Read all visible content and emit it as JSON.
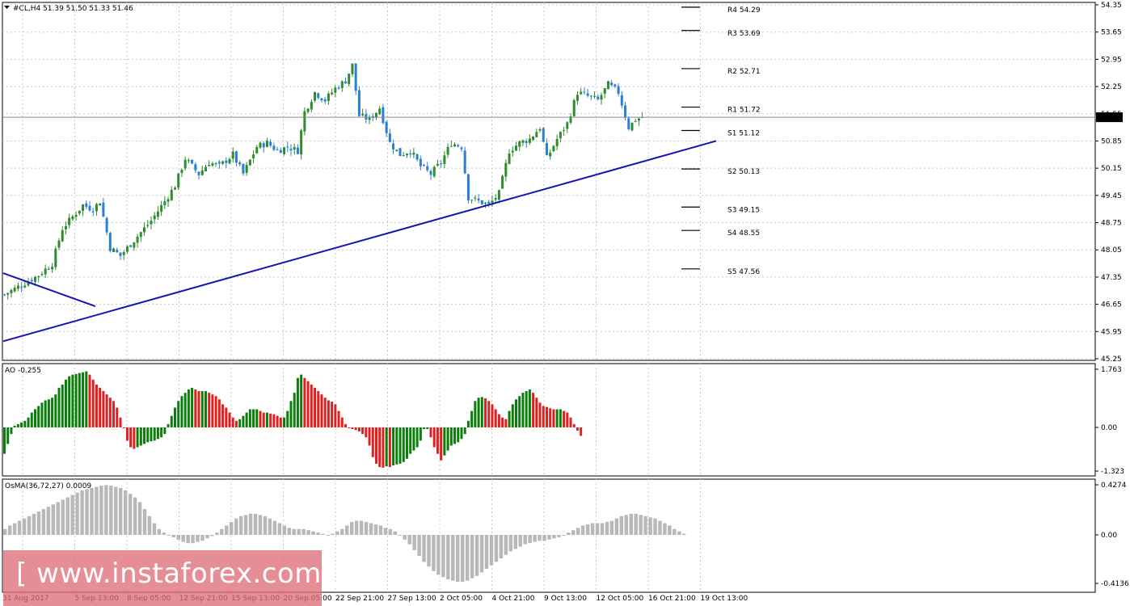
{
  "watermark": "[ www.instaforex.com ]",
  "main_header": "#CL,H4  51.39 51.50 51.33 51.46",
  "ao_header": "AO -0.255",
  "osma_header": "OsMA(36,72,27) 0.0009",
  "current_price_label": "51.46",
  "colors": {
    "up": "#2e8b2e",
    "down": "#2a7fd4",
    "ao_up": "#0a7d0a",
    "ao_down": "#e02020",
    "osma": "#b8b8b8",
    "trendline": "#1414b4",
    "grid": "#c8c8c8"
  },
  "chart_data": [
    {
      "type": "candlestick",
      "symbol": "#CL,H4",
      "ohlc_current": {
        "open": 51.39,
        "high": 51.5,
        "low": 51.33,
        "close": 51.46
      },
      "y_ticks": [
        "54.35",
        "53.65",
        "52.95",
        "52.25",
        "51.55",
        "50.85",
        "50.15",
        "49.45",
        "48.75",
        "48.05",
        "47.35",
        "46.65",
        "45.95",
        "45.25"
      ],
      "ylim": [
        45.25,
        54.35
      ],
      "x_ticks": [
        "31 Aug 2017",
        "5 Sep 13:00",
        "8 Sep 05:00",
        "12 Sep 21:00",
        "15 Sep 13:00",
        "20 Sep 05:00",
        "22 Sep 21:00",
        "27 Sep 13:00",
        "2 Oct 05:00",
        "4 Oct 21:00",
        "9 Oct 13:00",
        "12 Oct 05:00",
        "16 Oct 21:00",
        "19 Oct 13:00"
      ],
      "close_path": [
        [
          0,
          46.9
        ],
        [
          6,
          47.2
        ],
        [
          10,
          47.4
        ],
        [
          14,
          47.7
        ],
        [
          17,
          48.6
        ],
        [
          20,
          48.9
        ],
        [
          23,
          49.2
        ],
        [
          26,
          49.1
        ],
        [
          28,
          49.3
        ],
        [
          31,
          48.1
        ],
        [
          34,
          47.9
        ],
        [
          37,
          48.2
        ],
        [
          40,
          48.5
        ],
        [
          43,
          48.8
        ],
        [
          47,
          49.3
        ],
        [
          50,
          49.7
        ],
        [
          53,
          50.4
        ],
        [
          57,
          50.0
        ],
        [
          60,
          50.3
        ],
        [
          63,
          50.2
        ],
        [
          67,
          50.5
        ],
        [
          70,
          50.0
        ],
        [
          74,
          50.7
        ],
        [
          77,
          50.8
        ],
        [
          80,
          50.6
        ],
        [
          83,
          50.7
        ],
        [
          86,
          50.6
        ],
        [
          88,
          51.6
        ],
        [
          91,
          52.1
        ],
        [
          94,
          51.9
        ],
        [
          97,
          52.2
        ],
        [
          100,
          52.4
        ],
        [
          102,
          52.8
        ],
        [
          104,
          51.5
        ],
        [
          107,
          51.4
        ],
        [
          110,
          51.7
        ],
        [
          113,
          50.8
        ],
        [
          116,
          50.5
        ],
        [
          119,
          50.6
        ],
        [
          122,
          50.2
        ],
        [
          125,
          50.0
        ],
        [
          128,
          50.3
        ],
        [
          131,
          50.8
        ],
        [
          134,
          50.7
        ],
        [
          136,
          49.4
        ],
        [
          139,
          49.3
        ],
        [
          142,
          49.2
        ],
        [
          145,
          49.5
        ],
        [
          148,
          50.6
        ],
        [
          151,
          50.8
        ],
        [
          154,
          50.9
        ],
        [
          157,
          51.2
        ],
        [
          159,
          50.4
        ],
        [
          162,
          50.9
        ],
        [
          165,
          51.3
        ],
        [
          168,
          52.1
        ],
        [
          171,
          52.0
        ],
        [
          174,
          51.9
        ],
        [
          177,
          52.3
        ],
        [
          180,
          52.1
        ],
        [
          183,
          51.2
        ],
        [
          185,
          51.4
        ],
        [
          187,
          51.46
        ]
      ],
      "pivots": [
        {
          "label": "R4 54.29",
          "value": 54.29
        },
        {
          "label": "R3 53.69",
          "value": 53.69
        },
        {
          "label": "R2 52.71",
          "value": 52.71
        },
        {
          "label": "R1 51.72",
          "value": 51.72
        },
        {
          "label": "S1 51.12",
          "value": 51.12
        },
        {
          "label": "S2 50.13",
          "value": 50.13
        },
        {
          "label": "S3 49.15",
          "value": 49.15
        },
        {
          "label": "S4 48.55",
          "value": 48.55
        },
        {
          "label": "S5 47.56",
          "value": 47.56
        }
      ],
      "trendlines": [
        {
          "from": [
            0,
            45.7
          ],
          "to": [
            209,
            50.85
          ]
        },
        {
          "from": [
            0,
            47.45
          ],
          "to": [
            27,
            46.6
          ]
        }
      ]
    },
    {
      "type": "bar",
      "name": "AO",
      "value": -0.255,
      "y_ticks": [
        "1.763",
        "0.00",
        "-1.323"
      ],
      "ylim": [
        -1.323,
        1.763
      ],
      "values": [
        -0.8,
        -0.5,
        -0.2,
        0.05,
        0.1,
        0.15,
        0.2,
        0.3,
        0.45,
        0.55,
        0.65,
        0.75,
        0.82,
        0.85,
        0.9,
        1.0,
        1.2,
        1.3,
        1.45,
        1.55,
        1.6,
        1.62,
        1.65,
        1.67,
        1.7,
        1.6,
        1.45,
        1.3,
        1.2,
        1.1,
        1.0,
        0.9,
        0.8,
        0.6,
        0.3,
        0.0,
        -0.4,
        -0.6,
        -0.65,
        -0.6,
        -0.55,
        -0.5,
        -0.45,
        -0.42,
        -0.4,
        -0.35,
        -0.3,
        -0.2,
        0.1,
        0.35,
        0.6,
        0.8,
        0.95,
        1.05,
        1.15,
        1.2,
        1.15,
        1.1,
        1.1,
        1.1,
        1.05,
        1.0,
        0.95,
        0.85,
        0.7,
        0.6,
        0.45,
        0.3,
        0.2,
        0.25,
        0.35,
        0.45,
        0.55,
        0.55,
        0.55,
        0.5,
        0.45,
        0.45,
        0.42,
        0.4,
        0.35,
        0.3,
        0.3,
        0.5,
        0.8,
        1.05,
        1.5,
        1.6,
        1.5,
        1.4,
        1.3,
        1.2,
        1.1,
        1.0,
        0.9,
        0.82,
        0.78,
        0.7,
        0.5,
        0.3,
        0.1,
        -0.02,
        -0.05,
        -0.08,
        -0.12,
        -0.2,
        -0.3,
        -0.55,
        -0.9,
        -1.1,
        -1.2,
        -1.22,
        -1.18,
        -1.2,
        -1.15,
        -1.12,
        -1.1,
        -1.05,
        -0.95,
        -0.8,
        -0.7,
        -0.6,
        -0.4,
        -0.05,
        -0.05,
        -0.3,
        -0.6,
        -0.8,
        -1.0,
        -0.85,
        -0.7,
        -0.55,
        -0.5,
        -0.45,
        -0.35,
        -0.2,
        0.2,
        0.5,
        0.8,
        0.9,
        0.92,
        0.88,
        0.8,
        0.7,
        0.55,
        0.4,
        0.3,
        0.25,
        0.5,
        0.7,
        0.85,
        0.95,
        1.05,
        1.1,
        1.15,
        1.05,
        0.9,
        0.75,
        0.65,
        0.62,
        0.58,
        0.55,
        0.55,
        0.55,
        0.5,
        0.45,
        0.3,
        0.1,
        -0.1,
        -0.255
      ],
      "colors_by_change": true
    },
    {
      "type": "bar",
      "name": "OsMA(36,72,27)",
      "value": 0.0009,
      "y_ticks": [
        "0.4274",
        "0.00",
        "-0.4136"
      ],
      "ylim": [
        -0.4136,
        0.4274
      ],
      "values": [
        0.05,
        0.08,
        0.1,
        0.12,
        0.14,
        0.16,
        0.18,
        0.2,
        0.22,
        0.24,
        0.26,
        0.28,
        0.3,
        0.32,
        0.34,
        0.36,
        0.38,
        0.39,
        0.4,
        0.41,
        0.42,
        0.425,
        0.42,
        0.41,
        0.4,
        0.38,
        0.35,
        0.32,
        0.28,
        0.22,
        0.16,
        0.1,
        0.05,
        0.02,
        0.0,
        -0.02,
        -0.04,
        -0.06,
        -0.07,
        -0.07,
        -0.06,
        -0.05,
        -0.03,
        -0.01,
        0.02,
        0.05,
        0.08,
        0.11,
        0.14,
        0.16,
        0.17,
        0.18,
        0.18,
        0.17,
        0.16,
        0.14,
        0.12,
        0.1,
        0.08,
        0.06,
        0.05,
        0.05,
        0.05,
        0.04,
        0.03,
        0.02,
        0.01,
        0.0,
        0.01,
        0.03,
        0.05,
        0.08,
        0.11,
        0.12,
        0.12,
        0.11,
        0.1,
        0.09,
        0.08,
        0.06,
        0.05,
        0.03,
        0.0,
        -0.04,
        -0.08,
        -0.13,
        -0.18,
        -0.23,
        -0.27,
        -0.31,
        -0.34,
        -0.36,
        -0.38,
        -0.39,
        -0.4,
        -0.4,
        -0.39,
        -0.37,
        -0.35,
        -0.32,
        -0.29,
        -0.26,
        -0.23,
        -0.2,
        -0.17,
        -0.14,
        -0.12,
        -0.1,
        -0.08,
        -0.07,
        -0.06,
        -0.05,
        -0.05,
        -0.04,
        -0.03,
        -0.02,
        0.0,
        0.02,
        0.04,
        0.06,
        0.08,
        0.09,
        0.1,
        0.1,
        0.1,
        0.11,
        0.12,
        0.14,
        0.16,
        0.17,
        0.18,
        0.18,
        0.17,
        0.16,
        0.15,
        0.14,
        0.12,
        0.1,
        0.08,
        0.05,
        0.03,
        0.01
      ]
    }
  ]
}
